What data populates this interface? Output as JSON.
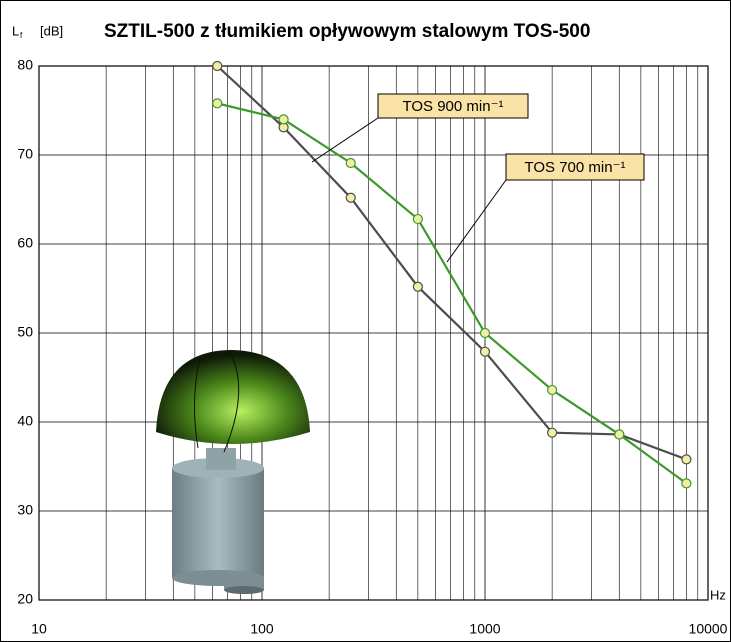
{
  "chart_data": {
    "type": "line",
    "title": "SZTIL-500 z tłumikiem opływowym stalowym TOS-500",
    "y_label": {
      "symbol": "L",
      "subscript": "f",
      "unit": "[dB]"
    },
    "x_label": "Hz",
    "x": [
      63,
      125,
      250,
      500,
      1000,
      2000,
      4000,
      8000
    ],
    "xscale": "log",
    "xlim": [
      10,
      10000
    ],
    "xticks": [
      10,
      100,
      1000,
      10000
    ],
    "ylim": [
      20,
      80
    ],
    "yticks": [
      20,
      30,
      40,
      50,
      60,
      70,
      80
    ],
    "grid": true,
    "series": [
      {
        "name": "TOS 900 min⁻¹",
        "color": "#4d4d4d",
        "values": [
          80,
          73.1,
          65.2,
          55.2,
          47.9,
          38.8,
          38.6,
          35.8
        ]
      },
      {
        "name": "TOS 700 min⁻¹",
        "color": "#3c9a2c",
        "values": [
          75.8,
          74.0,
          69.1,
          62.8,
          50.0,
          43.6,
          38.6,
          33.1
        ]
      }
    ]
  }
}
